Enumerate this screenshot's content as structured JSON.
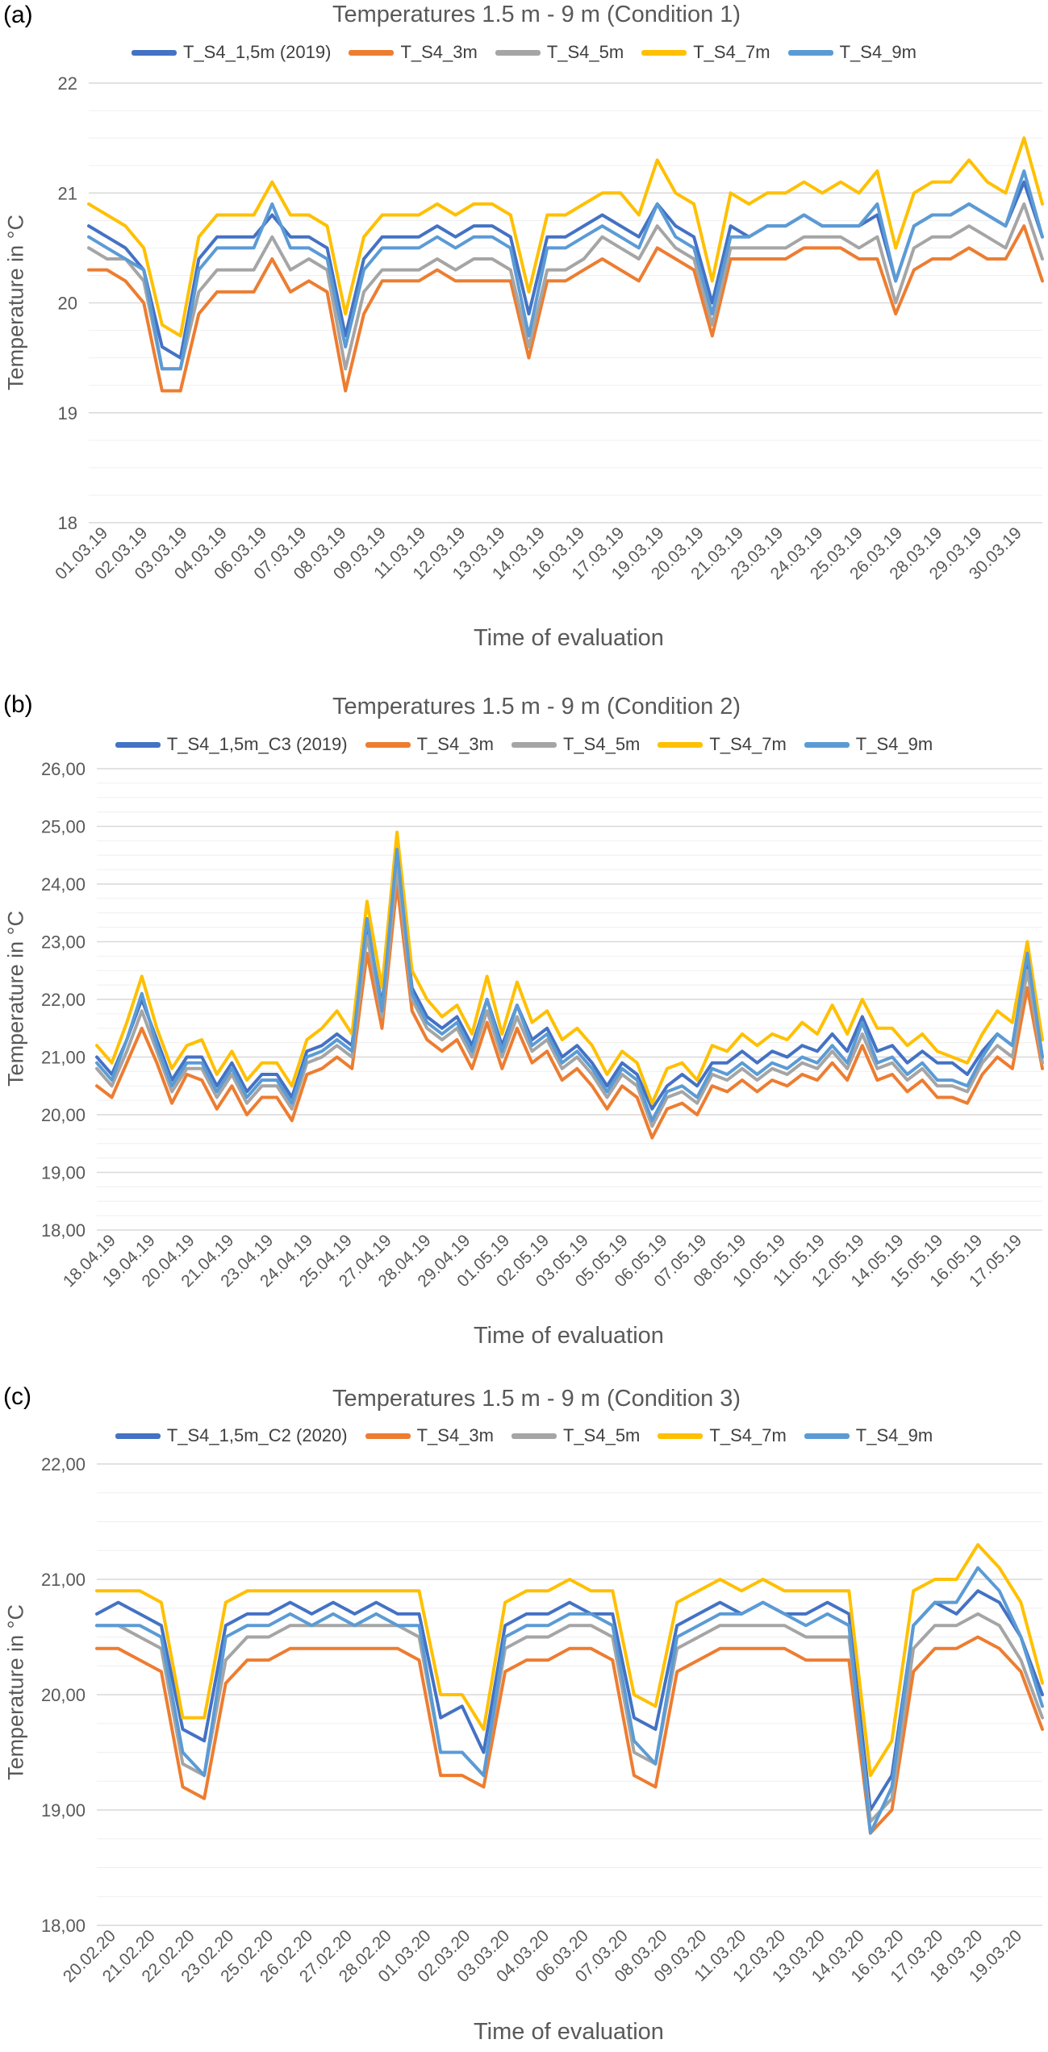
{
  "colors": {
    "s15": "#4472C4",
    "s3": "#ED7D31",
    "s5": "#A5A5A5",
    "s7": "#FFC000",
    "s9": "#5B9BD5",
    "grid": "#D9D9D9"
  },
  "chart_data": [
    {
      "panel_label": "(a)",
      "type": "line",
      "title": "Temperatures 1.5 m - 9 m (Condition 1)",
      "xlabel": "Time of evaluation",
      "ylabel": "Temperature in °C",
      "ylim": [
        18,
        22
      ],
      "yticks": [
        "18",
        "19",
        "20",
        "21",
        "22"
      ],
      "grid": true,
      "legend_position": "top",
      "x_tick_labels": [
        "01.03.19",
        "02.03.19",
        "03.03.19",
        "04.03.19",
        "06.03.19",
        "07.03.19",
        "08.03.19",
        "09.03.19",
        "11.03.19",
        "12.03.19",
        "13.03.19",
        "14.03.19",
        "16.03.19",
        "17.03.19",
        "19.03.19",
        "20.03.19",
        "21.03.19",
        "23.03.19",
        "24.03.19",
        "25.03.19",
        "26.03.19",
        "28.03.19",
        "29.03.19",
        "30.03.19"
      ],
      "series": [
        {
          "name": "T_S4_1,5m (2019)",
          "color_key": "s15",
          "values": [
            20.7,
            20.6,
            20.5,
            20.3,
            19.6,
            19.5,
            20.4,
            20.6,
            20.6,
            20.6,
            20.8,
            20.6,
            20.6,
            20.5,
            19.7,
            20.4,
            20.6,
            20.6,
            20.6,
            20.7,
            20.6,
            20.7,
            20.7,
            20.6,
            19.9,
            20.6,
            20.6,
            20.7,
            20.8,
            20.7,
            20.6,
            20.9,
            20.7,
            20.6,
            20.0,
            20.7,
            20.6,
            20.7,
            20.7,
            20.8,
            20.7,
            20.7,
            20.7,
            20.8,
            20.2,
            20.7,
            20.8,
            20.8,
            20.9,
            20.8,
            20.7,
            21.1,
            20.6
          ]
        },
        {
          "name": "T_S4_3m",
          "color_key": "s3",
          "values": [
            20.3,
            20.3,
            20.2,
            20.0,
            19.2,
            19.2,
            19.9,
            20.1,
            20.1,
            20.1,
            20.4,
            20.1,
            20.2,
            20.1,
            19.2,
            19.9,
            20.2,
            20.2,
            20.2,
            20.3,
            20.2,
            20.2,
            20.2,
            20.2,
            19.5,
            20.2,
            20.2,
            20.3,
            20.4,
            20.3,
            20.2,
            20.5,
            20.4,
            20.3,
            19.7,
            20.4,
            20.4,
            20.4,
            20.4,
            20.5,
            20.5,
            20.5,
            20.4,
            20.4,
            19.9,
            20.3,
            20.4,
            20.4,
            20.5,
            20.4,
            20.4,
            20.7,
            20.2
          ]
        },
        {
          "name": "T_S4_5m",
          "color_key": "s5",
          "values": [
            20.5,
            20.4,
            20.4,
            20.2,
            19.4,
            19.4,
            20.1,
            20.3,
            20.3,
            20.3,
            20.6,
            20.3,
            20.4,
            20.3,
            19.4,
            20.1,
            20.3,
            20.3,
            20.3,
            20.4,
            20.3,
            20.4,
            20.4,
            20.3,
            19.6,
            20.3,
            20.3,
            20.4,
            20.6,
            20.5,
            20.4,
            20.7,
            20.5,
            20.4,
            19.8,
            20.5,
            20.5,
            20.5,
            20.5,
            20.6,
            20.6,
            20.6,
            20.5,
            20.6,
            20.0,
            20.5,
            20.6,
            20.6,
            20.7,
            20.6,
            20.5,
            20.9,
            20.4
          ]
        },
        {
          "name": "T_S4_7m",
          "color_key": "s7",
          "values": [
            20.9,
            20.8,
            20.7,
            20.5,
            19.8,
            19.7,
            20.6,
            20.8,
            20.8,
            20.8,
            21.1,
            20.8,
            20.8,
            20.7,
            19.9,
            20.6,
            20.8,
            20.8,
            20.8,
            20.9,
            20.8,
            20.9,
            20.9,
            20.8,
            20.1,
            20.8,
            20.8,
            20.9,
            21.0,
            21.0,
            20.8,
            21.3,
            21.0,
            20.9,
            20.2,
            21.0,
            20.9,
            21.0,
            21.0,
            21.1,
            21.0,
            21.1,
            21.0,
            21.2,
            20.5,
            21.0,
            21.1,
            21.1,
            21.3,
            21.1,
            21.0,
            21.5,
            20.9
          ]
        },
        {
          "name": "T_S4_9m",
          "color_key": "s9",
          "values": [
            20.6,
            20.5,
            20.4,
            20.3,
            19.4,
            19.4,
            20.3,
            20.5,
            20.5,
            20.5,
            20.9,
            20.5,
            20.5,
            20.4,
            19.6,
            20.3,
            20.5,
            20.5,
            20.5,
            20.6,
            20.5,
            20.6,
            20.6,
            20.5,
            19.7,
            20.5,
            20.5,
            20.6,
            20.7,
            20.6,
            20.5,
            20.9,
            20.6,
            20.5,
            19.9,
            20.6,
            20.6,
            20.7,
            20.7,
            20.8,
            20.7,
            20.7,
            20.7,
            20.9,
            20.2,
            20.7,
            20.8,
            20.8,
            20.9,
            20.8,
            20.7,
            21.2,
            20.6
          ]
        }
      ]
    },
    {
      "panel_label": "(b)",
      "type": "line",
      "title": "Temperatures 1.5 m - 9 m (Condition 2)",
      "xlabel": "Time of evaluation",
      "ylabel": "Temperature in °C",
      "ylim": [
        18,
        26
      ],
      "yticks": [
        "18,00",
        "19,00",
        "20,00",
        "21,00",
        "22,00",
        "23,00",
        "24,00",
        "25,00",
        "26,00"
      ],
      "grid": true,
      "legend_position": "top",
      "x_tick_labels": [
        "18.04.19",
        "19.04.19",
        "20.04.19",
        "21.04.19",
        "23.04.19",
        "24.04.19",
        "25.04.19",
        "27.04.19",
        "28.04.19",
        "29.04.19",
        "01.05.19",
        "02.05.19",
        "03.05.19",
        "05.05.19",
        "06.05.19",
        "07.05.19",
        "08.05.19",
        "10.05.19",
        "11.05.19",
        "12.05.19",
        "14.05.19",
        "15.05.19",
        "16.05.19",
        "17.05.19"
      ],
      "series": [
        {
          "name": "T_S4_1,5m_C3 (2019)",
          "color_key": "s15",
          "values": [
            21.0,
            20.7,
            21.3,
            22.0,
            21.3,
            20.6,
            21.0,
            21.0,
            20.5,
            20.9,
            20.4,
            20.7,
            20.7,
            20.3,
            21.1,
            21.2,
            21.4,
            21.2,
            23.3,
            21.9,
            24.5,
            22.2,
            21.7,
            21.5,
            21.7,
            21.2,
            22.0,
            21.2,
            21.9,
            21.3,
            21.5,
            21.0,
            21.2,
            20.9,
            20.5,
            20.9,
            20.7,
            20.1,
            20.5,
            20.7,
            20.5,
            20.9,
            20.9,
            21.1,
            20.9,
            21.1,
            21.0,
            21.2,
            21.1,
            21.4,
            21.1,
            21.7,
            21.1,
            21.2,
            20.9,
            21.1,
            20.9,
            20.9,
            20.7,
            21.1,
            21.4,
            21.2,
            22.7,
            21.0
          ]
        },
        {
          "name": "T_S4_3m",
          "color_key": "s3",
          "values": [
            20.5,
            20.3,
            20.9,
            21.5,
            20.9,
            20.2,
            20.7,
            20.6,
            20.1,
            20.5,
            20.0,
            20.3,
            20.3,
            19.9,
            20.7,
            20.8,
            21.0,
            20.8,
            22.8,
            21.5,
            24.0,
            21.8,
            21.3,
            21.1,
            21.3,
            20.8,
            21.6,
            20.8,
            21.5,
            20.9,
            21.1,
            20.6,
            20.8,
            20.5,
            20.1,
            20.5,
            20.3,
            19.6,
            20.1,
            20.2,
            20.0,
            20.5,
            20.4,
            20.6,
            20.4,
            20.6,
            20.5,
            20.7,
            20.6,
            20.9,
            20.6,
            21.2,
            20.6,
            20.7,
            20.4,
            20.6,
            20.3,
            20.3,
            20.2,
            20.7,
            21.0,
            20.8,
            22.2,
            20.8
          ]
        },
        {
          "name": "T_S4_5m",
          "color_key": "s5",
          "values": [
            20.8,
            20.5,
            21.1,
            21.8,
            21.1,
            20.4,
            20.8,
            20.8,
            20.3,
            20.7,
            20.2,
            20.5,
            20.5,
            20.1,
            20.9,
            21.0,
            21.2,
            21.0,
            23.1,
            21.7,
            24.3,
            22.0,
            21.5,
            21.3,
            21.5,
            21.0,
            21.8,
            21.0,
            21.7,
            21.1,
            21.3,
            20.8,
            21.0,
            20.7,
            20.3,
            20.7,
            20.5,
            19.8,
            20.3,
            20.4,
            20.2,
            20.7,
            20.6,
            20.8,
            20.6,
            20.8,
            20.7,
            20.9,
            20.8,
            21.1,
            20.8,
            21.4,
            20.8,
            20.9,
            20.6,
            20.8,
            20.5,
            20.5,
            20.4,
            20.9,
            21.2,
            21.0,
            22.5,
            20.9
          ]
        },
        {
          "name": "T_S4_7m",
          "color_key": "s7",
          "values": [
            21.2,
            20.9,
            21.6,
            22.4,
            21.5,
            20.8,
            21.2,
            21.3,
            20.7,
            21.1,
            20.6,
            20.9,
            20.9,
            20.5,
            21.3,
            21.5,
            21.8,
            21.4,
            23.7,
            22.2,
            24.9,
            22.5,
            22.0,
            21.7,
            21.9,
            21.4,
            22.4,
            21.4,
            22.3,
            21.6,
            21.8,
            21.3,
            21.5,
            21.2,
            20.7,
            21.1,
            20.9,
            20.2,
            20.8,
            20.9,
            20.6,
            21.2,
            21.1,
            21.4,
            21.2,
            21.4,
            21.3,
            21.6,
            21.4,
            21.9,
            21.4,
            22.0,
            21.5,
            21.5,
            21.2,
            21.4,
            21.1,
            21.0,
            20.9,
            21.4,
            21.8,
            21.6,
            23.0,
            21.3
          ]
        },
        {
          "name": "T_S4_9m",
          "color_key": "s9",
          "values": [
            20.9,
            20.6,
            21.3,
            22.1,
            21.2,
            20.5,
            20.9,
            20.9,
            20.4,
            20.8,
            20.3,
            20.6,
            20.6,
            20.2,
            21.0,
            21.1,
            21.3,
            21.1,
            23.4,
            21.8,
            24.6,
            22.1,
            21.6,
            21.4,
            21.6,
            21.1,
            22.0,
            21.1,
            21.9,
            21.2,
            21.4,
            20.9,
            21.1,
            20.8,
            20.4,
            20.8,
            20.6,
            19.9,
            20.4,
            20.5,
            20.3,
            20.8,
            20.7,
            20.9,
            20.7,
            20.9,
            20.8,
            21.0,
            20.9,
            21.2,
            20.9,
            21.6,
            20.9,
            21.0,
            20.7,
            20.9,
            20.6,
            20.6,
            20.5,
            21.0,
            21.4,
            21.2,
            22.8,
            21.0
          ]
        }
      ]
    },
    {
      "panel_label": "(c)",
      "type": "line",
      "title": "Temperatures 1.5 m - 9 m (Condition 3)",
      "xlabel": "Time of evaluation",
      "ylabel": "Temperature in °C",
      "ylim": [
        18,
        22
      ],
      "yticks": [
        "18,00",
        "19,00",
        "20,00",
        "21,00",
        "22,00"
      ],
      "grid": true,
      "legend_position": "top",
      "x_tick_labels": [
        "20.02.20",
        "21.02.20",
        "22.02.20",
        "23.02.20",
        "25.02.20",
        "26.02.20",
        "27.02.20",
        "28.02.20",
        "01.03.20",
        "02.03.20",
        "03.03.20",
        "04.03.20",
        "06.03.20",
        "07.03.20",
        "08.03.20",
        "09.03.20",
        "11.03.20",
        "12.03.20",
        "13.03.20",
        "14.03.20",
        "16.03.20",
        "17.03.20",
        "18.03.20",
        "19.03.20"
      ],
      "series": [
        {
          "name": "T_S4_1,5m_C2 (2020)",
          "color_key": "s15",
          "values": [
            20.7,
            20.8,
            20.7,
            20.6,
            19.7,
            19.6,
            20.6,
            20.7,
            20.7,
            20.8,
            20.7,
            20.8,
            20.7,
            20.8,
            20.7,
            20.7,
            19.8,
            19.9,
            19.5,
            20.6,
            20.7,
            20.7,
            20.8,
            20.7,
            20.7,
            19.8,
            19.7,
            20.6,
            20.7,
            20.8,
            20.7,
            20.8,
            20.7,
            20.7,
            20.8,
            20.7,
            19.0,
            19.3,
            20.6,
            20.8,
            20.7,
            20.9,
            20.8,
            20.5,
            20.0
          ]
        },
        {
          "name": "T_S4_3m",
          "color_key": "s3",
          "values": [
            20.4,
            20.4,
            20.3,
            20.2,
            19.2,
            19.1,
            20.1,
            20.3,
            20.3,
            20.4,
            20.4,
            20.4,
            20.4,
            20.4,
            20.4,
            20.3,
            19.3,
            19.3,
            19.2,
            20.2,
            20.3,
            20.3,
            20.4,
            20.4,
            20.3,
            19.3,
            19.2,
            20.2,
            20.3,
            20.4,
            20.4,
            20.4,
            20.4,
            20.3,
            20.3,
            20.3,
            18.8,
            19.0,
            20.2,
            20.4,
            20.4,
            20.5,
            20.4,
            20.2,
            19.7
          ]
        },
        {
          "name": "T_S4_5m",
          "color_key": "s5",
          "values": [
            20.6,
            20.6,
            20.5,
            20.4,
            19.4,
            19.3,
            20.3,
            20.5,
            20.5,
            20.6,
            20.6,
            20.6,
            20.6,
            20.6,
            20.6,
            20.5,
            19.5,
            19.5,
            19.3,
            20.4,
            20.5,
            20.5,
            20.6,
            20.6,
            20.5,
            19.5,
            19.4,
            20.4,
            20.5,
            20.6,
            20.6,
            20.6,
            20.6,
            20.5,
            20.5,
            20.5,
            18.9,
            19.1,
            20.4,
            20.6,
            20.6,
            20.7,
            20.6,
            20.3,
            19.8
          ]
        },
        {
          "name": "T_S4_7m",
          "color_key": "s7",
          "values": [
            20.9,
            20.9,
            20.9,
            20.8,
            19.8,
            19.8,
            20.8,
            20.9,
            20.9,
            20.9,
            20.9,
            20.9,
            20.9,
            20.9,
            20.9,
            20.9,
            20.0,
            20.0,
            19.7,
            20.8,
            20.9,
            20.9,
            21.0,
            20.9,
            20.9,
            20.0,
            19.9,
            20.8,
            20.9,
            21.0,
            20.9,
            21.0,
            20.9,
            20.9,
            20.9,
            20.9,
            19.3,
            19.6,
            20.9,
            21.0,
            21.0,
            21.3,
            21.1,
            20.8,
            20.1
          ]
        },
        {
          "name": "T_S4_9m",
          "color_key": "s9",
          "values": [
            20.6,
            20.6,
            20.6,
            20.5,
            19.5,
            19.3,
            20.5,
            20.6,
            20.6,
            20.7,
            20.6,
            20.7,
            20.6,
            20.7,
            20.6,
            20.6,
            19.5,
            19.5,
            19.3,
            20.5,
            20.6,
            20.6,
            20.7,
            20.7,
            20.6,
            19.6,
            19.4,
            20.5,
            20.6,
            20.7,
            20.7,
            20.8,
            20.7,
            20.6,
            20.7,
            20.6,
            18.8,
            19.2,
            20.6,
            20.8,
            20.8,
            21.1,
            20.9,
            20.5,
            19.9
          ]
        }
      ]
    }
  ]
}
